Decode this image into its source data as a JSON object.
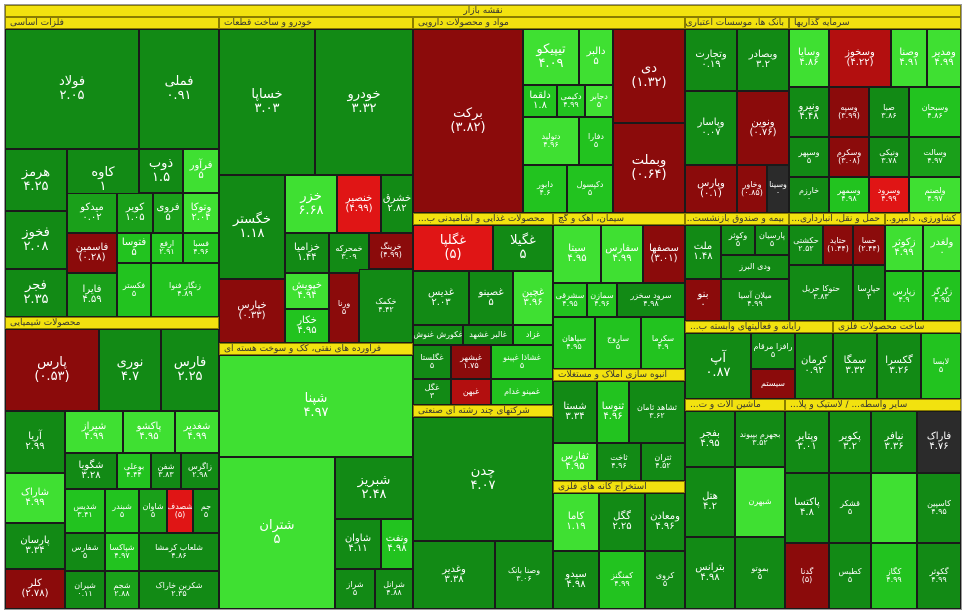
{
  "title": "نقشه بازار",
  "sectors": {
    "metals": "فلزات اساسی",
    "auto": "خودرو و ساخت قطعات",
    "pharma": "مواد و محصولات دارویی",
    "banks": "بانک ها، موسسات اعتباری و سایر نهادها...",
    "invest": "سرمایه گذاریها",
    "chemical": "محصولات شیمیایی",
    "oil": "فرآورده های نفتی، کک و سوخت هسته ای",
    "food": "محصولات غذایی و آشامیدنی ب...",
    "cement": "سیمان، آهک و گچ",
    "insurance": "بیمه و صندوق بازنشست...",
    "transport": "حمل و نقل، انبارداری...",
    "agri": "کشاورزی، دامپرو...",
    "realestate": "انبوه سازی املاک و مستغلات",
    "multi": "شرکتهای چند رشته ای صنعتی",
    "mining": "استخراج کانه های فلزی",
    "it": "رایانه و فعالیتهای وابسته ب...",
    "electric": "ماشین آلات و ت..."
  },
  "tiles": [
    {
      "n": "فولاد",
      "v": "۲.۰۵"
    },
    {
      "n": "فملی",
      "v": "۰.۹۱"
    },
    {
      "n": "هرمز",
      "v": "۴.۲۵"
    },
    {
      "n": "کاوه",
      "v": "۱"
    },
    {
      "n": "ذوب",
      "v": "۱.۵"
    },
    {
      "n": "فخوز",
      "v": "۲.۰۸"
    },
    {
      "n": "فجر",
      "v": "۲.۳۵"
    },
    {
      "n": "فایرا",
      "v": "۴.۵۹"
    },
    {
      "n": "خساپا",
      "v": "۳.۰۳"
    },
    {
      "n": "خودرو",
      "v": "۳.۳۲"
    },
    {
      "n": "خگستر",
      "v": "۱.۱۸"
    },
    {
      "n": "خزر",
      "v": "۶.۶۸"
    },
    {
      "n": "خنصیر",
      "v": "(۴.۹۹)"
    },
    {
      "n": "خپارس",
      "v": "(۰.۳۳)"
    },
    {
      "n": "خزامیا",
      "v": "۱.۴۴"
    },
    {
      "n": "خکار",
      "v": "۴.۹۵"
    },
    {
      "n": "برکت",
      "v": "(۳.۸۲)"
    },
    {
      "n": "تیپیکو",
      "v": "۴.۰۹"
    },
    {
      "n": "دی",
      "v": "(۱.۳۲)"
    },
    {
      "n": "وبملت",
      "v": "(۰.۶۴)"
    },
    {
      "n": "وتجارت",
      "v": "۰.۱۹"
    },
    {
      "n": "وبصادر",
      "v": "۳.۲"
    },
    {
      "n": "وپاسار",
      "v": "۰.۰۷"
    },
    {
      "n": "ونوین",
      "v": "(۰.۷۶)"
    },
    {
      "n": "وپارس",
      "v": "(۰.۱)"
    },
    {
      "n": "وسایا",
      "v": "۴.۸۶"
    },
    {
      "n": "وسخوز",
      "v": "(۴.۲۲)"
    },
    {
      "n": "وصنا",
      "v": "۴.۹۱"
    },
    {
      "n": "ومدیر",
      "v": "۴.۹۹"
    },
    {
      "n": "ونیرو",
      "v": "۴.۴۸"
    },
    {
      "n": "پارس",
      "v": "(۰.۵۳)"
    },
    {
      "n": "نوری",
      "v": "۴.۷"
    },
    {
      "n": "فارس",
      "v": "۲.۲۵"
    },
    {
      "n": "آریا",
      "v": "۲.۹۹"
    },
    {
      "n": "شیراز",
      "v": "۴.۹۹"
    },
    {
      "n": "پاکشو",
      "v": "۴.۹۵"
    },
    {
      "n": "شغدیر",
      "v": "۴.۹۹"
    },
    {
      "n": "شگویا",
      "v": "۳.۲۸"
    },
    {
      "n": "شاراک",
      "v": "۴.۹۹"
    },
    {
      "n": "پارسان",
      "v": "۳.۳۴"
    },
    {
      "n": "کلر",
      "v": "(۲.۷۸)"
    },
    {
      "n": "شپنا",
      "v": "۴.۹۷"
    },
    {
      "n": "شتران",
      "v": "۵"
    },
    {
      "n": "شبریز",
      "v": "۲.۴۸"
    },
    {
      "n": "شاوان",
      "v": "۴.۱۱"
    },
    {
      "n": "غگلپا",
      "v": "(۵)"
    },
    {
      "n": "غگیلا",
      "v": "۵"
    },
    {
      "n": "غدیس",
      "v": "۲.۰۳"
    },
    {
      "n": "غصینو",
      "v": "۵"
    },
    {
      "n": "سیتا",
      "v": "۴.۹۵"
    },
    {
      "n": "سفارس",
      "v": "۴.۹۹"
    },
    {
      "n": "سصفها",
      "v": "(۳.۰۱)"
    },
    {
      "n": "ملت",
      "v": "۱.۴۸"
    },
    {
      "n": "بنو",
      "v": ""
    },
    {
      "n": "دانا",
      "v": ""
    },
    {
      "n": "آپ",
      "v": "۰.۸۷"
    },
    {
      "n": "چدن",
      "v": "۴.۰۷"
    },
    {
      "n": "شستا",
      "v": "۳.۳۴"
    },
    {
      "n": "ثنوسا",
      "v": ""
    },
    {
      "n": "کرمان",
      "v": "۰.۹۲"
    },
    {
      "n": "کچاد",
      "v": "۳.۳۳"
    },
    {
      "n": "گگل",
      "v": "۲.۲۵"
    },
    {
      "n": "ومعادن",
      "v": "۴.۹۶"
    },
    {
      "n": "کاما",
      "v": "۱.۱۹"
    },
    {
      "n": "وغدیر",
      "v": "۳.۳۸"
    },
    {
      "n": "سیدو",
      "v": "۴.۹۸"
    },
    {
      "n": "زکوثر",
      "v": "۴.۹۹"
    },
    {
      "n": "ولغدر",
      "v": "۰"
    },
    {
      "n": "خاپارا",
      "v": "۲.۰۲"
    },
    {
      "n": "فاراک",
      "v": "۴.۷۶"
    },
    {
      "n": "نیافر",
      "v": "۳.۳۶"
    },
    {
      "n": "سمگا",
      "v": "۳.۳۲"
    },
    {
      "n": "گکسرا",
      "v": "۳.۲۶"
    },
    {
      "n": "پاکتسا",
      "v": "۴.۸"
    },
    {
      "n": "هتل",
      "v": "۴.۲"
    },
    {
      "n": "شبهرن",
      "v": ""
    }
  ]
}
